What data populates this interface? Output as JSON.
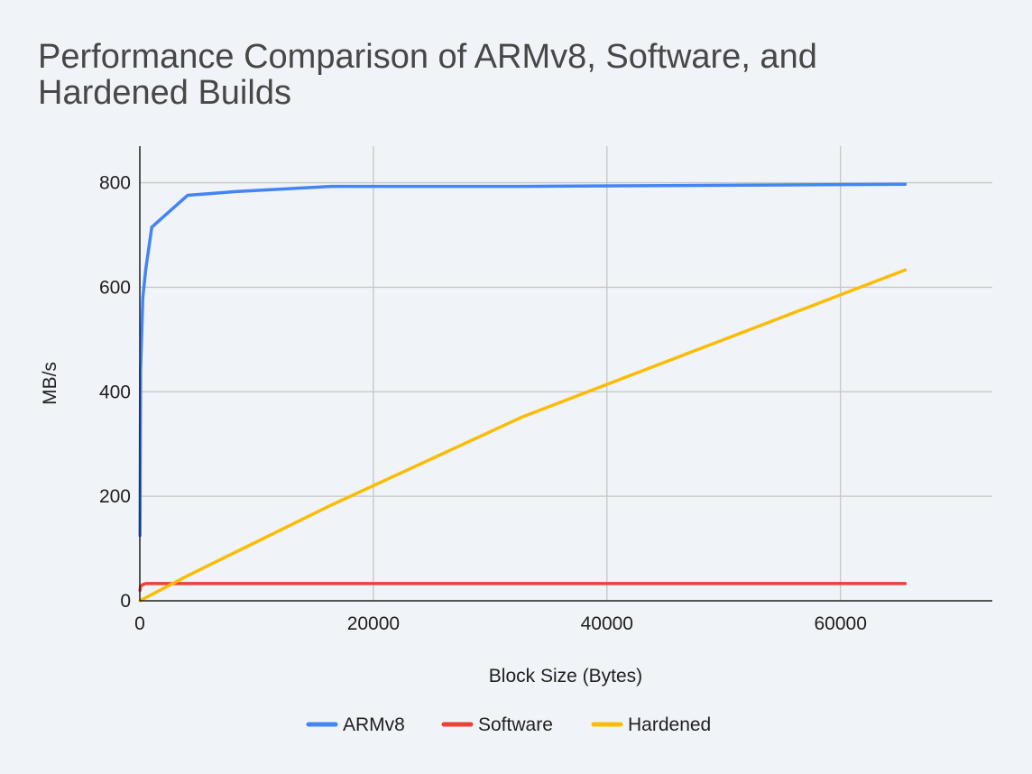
{
  "chart_data": {
    "type": "line",
    "title_lines": [
      "Performance Comparison of ARMv8, Software, and",
      "Hardened Builds"
    ],
    "xlabel": "Block Size (Bytes)",
    "ylabel": "MB/s",
    "xlim": [
      0,
      73000
    ],
    "ylim": [
      0,
      870
    ],
    "x_ticks": [
      0,
      20000,
      40000,
      60000
    ],
    "x_tick_labels": [
      "0",
      "20000",
      "40000",
      "60000"
    ],
    "y_ticks": [
      0,
      200,
      400,
      600,
      800
    ],
    "y_tick_labels": [
      "0",
      "200",
      "400",
      "600",
      "800"
    ],
    "grid": true,
    "legend_position": "bottom",
    "series": [
      {
        "name": "ARMv8",
        "color": "#4285f4",
        "points": [
          [
            16,
            125
          ],
          [
            64,
            440
          ],
          [
            256,
            580
          ],
          [
            512,
            635
          ],
          [
            1024,
            715
          ],
          [
            4096,
            776
          ],
          [
            8192,
            783
          ],
          [
            16384,
            793
          ],
          [
            32768,
            793
          ],
          [
            65536,
            797
          ]
        ]
      },
      {
        "name": "Software",
        "color": "#ea4335",
        "points": [
          [
            16,
            20
          ],
          [
            64,
            28
          ],
          [
            256,
            31
          ],
          [
            512,
            33
          ],
          [
            1024,
            33
          ],
          [
            4096,
            33
          ],
          [
            8192,
            33
          ],
          [
            16384,
            33
          ],
          [
            32768,
            33
          ],
          [
            65536,
            33
          ]
        ]
      },
      {
        "name": "Hardened",
        "color": "#fbbc04",
        "points": [
          [
            16,
            0
          ],
          [
            64,
            1
          ],
          [
            256,
            3
          ],
          [
            512,
            6
          ],
          [
            1024,
            12
          ],
          [
            4096,
            48
          ],
          [
            8192,
            93
          ],
          [
            16384,
            183
          ],
          [
            32768,
            352
          ],
          [
            65536,
            633
          ]
        ]
      }
    ]
  }
}
